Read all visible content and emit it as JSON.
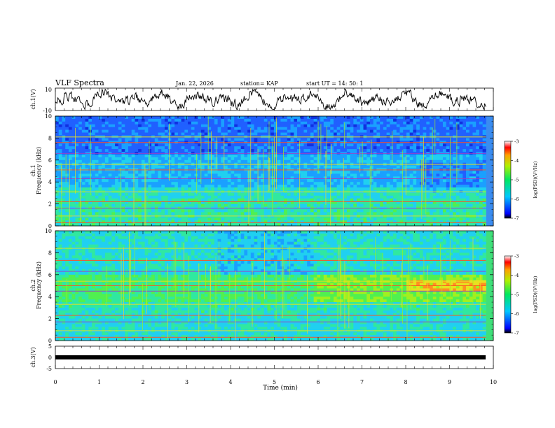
{
  "header": {
    "title": "VLF Spectra",
    "date": "Jan. 22, 2026",
    "station": "station= KAP",
    "start": "start  UT =   14: 50: 1"
  },
  "colors": {
    "wave": "#000000",
    "bar": "#000000",
    "spectro_ch1_base": "#3a8cf0",
    "spectro_ch2_base": "#3fe07a"
  },
  "chart_data": [
    {
      "type": "line",
      "name": "ch.1 waveform",
      "ylabel": "ch.1(V)",
      "ylim": [
        -10,
        10
      ],
      "yticks": [
        "10",
        "-10"
      ],
      "x_range_min": [
        0,
        9.83
      ]
    },
    {
      "type": "heatmap",
      "name": "ch.1 spectrogram",
      "ylabel_top": "ch.1",
      "ylabel": "Frequency (kHz)",
      "ylim": [
        0,
        10
      ],
      "yticks": [
        "0",
        "2",
        "4",
        "6",
        "8",
        "10"
      ],
      "colorbar": {
        "label": "log(PSD)(V²/Hz)",
        "range": [
          -7,
          -3
        ],
        "ticks": [
          "-3",
          "-4",
          "-5",
          "-6",
          "-7"
        ]
      }
    },
    {
      "type": "heatmap",
      "name": "ch.2 spectrogram",
      "ylabel_top": "ch.2",
      "ylabel": "Frequency (kHz)",
      "ylim": [
        0,
        10
      ],
      "yticks": [
        "0",
        "2",
        "4",
        "6",
        "8",
        "10"
      ],
      "colorbar": {
        "label": "log(PSD)(V²/Hz)",
        "range": [
          -7,
          -3
        ],
        "ticks": [
          "-3",
          "-4",
          "-5",
          "-6",
          "-7"
        ]
      }
    },
    {
      "type": "line",
      "name": "ch.3 waveform",
      "ylabel": "ch.3(V)",
      "ylim": [
        -5,
        5
      ],
      "yticks": [
        "5",
        "0",
        "-5"
      ],
      "level_volts": 0
    }
  ],
  "xaxis": {
    "label": "Time (min)",
    "range": [
      0,
      10
    ],
    "ticks": [
      "0",
      "1",
      "2",
      "3",
      "4",
      "5",
      "6",
      "7",
      "8",
      "9",
      "10"
    ]
  }
}
